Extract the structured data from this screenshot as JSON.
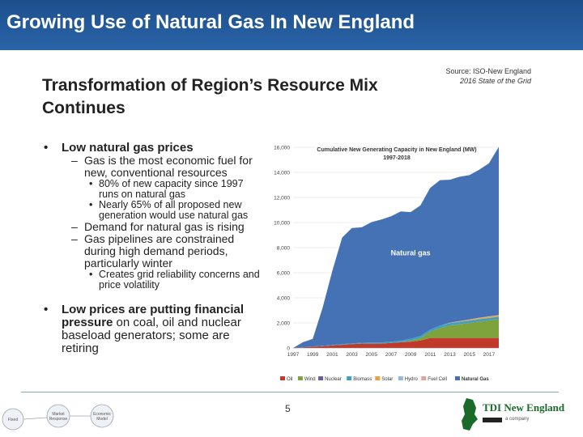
{
  "slide_title": "Growing Use of Natural Gas In New England",
  "source": {
    "line1": "Source: ISO-New England",
    "line2": "2016 State of the Grid"
  },
  "heading": {
    "line1": "Transformation of Region’s Resource Mix",
    "line2": "Continues"
  },
  "bullets": {
    "b1": {
      "label": "Low natural gas prices",
      "dashes": [
        {
          "text": "Gas is the most economic fuel for new, conventional resources"
        },
        {
          "text": "80% of new capacity since 1997 runs on natural gas"
        },
        {
          "text": "Nearly 65% of all proposed new generation would use natural gas"
        },
        {
          "text": "Demand for natural gas is rising"
        },
        {
          "text": "Gas pipelines are constrained during high demand periods, particularly winter"
        },
        {
          "text": "Creates grid reliability concerns and price volatility"
        }
      ]
    },
    "b2": {
      "bold": "Low prices are putting financial pressure",
      "rest": " on coal, oil and nuclear baseload generators; some are retiring"
    }
  },
  "page_number": "5",
  "flow_labels": {
    "n1": "Fixed",
    "n2a": "Market",
    "n2b": "Response",
    "n3a": "Economic",
    "n3b": "Model"
  },
  "logo": {
    "text": "TDI New England",
    "sub": "a company"
  },
  "colors": {
    "topbar": "#1d4f8c",
    "natural_gas": "#4472b4",
    "oil": "#c0392b",
    "wind": "#7fa33c",
    "nuclear": "#6b5b9e",
    "biomass": "#3e9fc4",
    "solar": "#e8a23a",
    "hydro": "#8db8df",
    "fuel_cell": "#d9a7a0"
  },
  "chart_data": {
    "type": "area",
    "title": "Cumulative New Generating Capacity in New England (MW)",
    "subtitle": "1997-2018",
    "x": [
      1997,
      1998,
      1999,
      2000,
      2001,
      2002,
      2003,
      2004,
      2005,
      2006,
      2007,
      2008,
      2009,
      2010,
      2011,
      2012,
      2013,
      2014,
      2015,
      2016,
      2017,
      2018
    ],
    "ylim": [
      0,
      16000
    ],
    "y_ticks": [
      "0",
      "2,000",
      "4,000",
      "6,000",
      "8,000",
      "10,000",
      "12,000",
      "14,000",
      "16,000"
    ],
    "x_ticks": [
      "1997",
      "1999",
      "2001",
      "2003",
      "2005",
      "2007",
      "2009",
      "2011",
      "2013",
      "2015",
      "2017"
    ],
    "series": [
      {
        "name": "Oil",
        "values": [
          0,
          50,
          100,
          150,
          200,
          250,
          300,
          350,
          350,
          350,
          400,
          450,
          500,
          600,
          800,
          800,
          800,
          800,
          800,
          800,
          800,
          800
        ]
      },
      {
        "name": "Wind",
        "values": [
          0,
          0,
          0,
          0,
          0,
          0,
          0,
          0,
          0,
          0,
          0,
          20,
          80,
          200,
          500,
          800,
          1000,
          1100,
          1200,
          1300,
          1400,
          1500
        ]
      },
      {
        "name": "Nuclear",
        "values": [
          0,
          0,
          0,
          0,
          0,
          0,
          0,
          0,
          0,
          0,
          0,
          0,
          0,
          0,
          0,
          0,
          0,
          0,
          0,
          0,
          0,
          0
        ]
      },
      {
        "name": "Biomass",
        "values": [
          0,
          10,
          20,
          30,
          40,
          50,
          60,
          70,
          80,
          90,
          100,
          120,
          150,
          160,
          170,
          180,
          180,
          190,
          190,
          190,
          190,
          190
        ]
      },
      {
        "name": "Solar",
        "values": [
          0,
          0,
          0,
          0,
          0,
          0,
          0,
          0,
          0,
          0,
          0,
          0,
          0,
          0,
          0,
          0,
          20,
          40,
          60,
          80,
          90,
          100
        ]
      },
      {
        "name": "Hydro",
        "values": [
          0,
          0,
          0,
          0,
          0,
          0,
          0,
          0,
          0,
          0,
          0,
          0,
          0,
          0,
          0,
          0,
          0,
          0,
          0,
          0,
          0,
          0
        ]
      },
      {
        "name": "Fuel Cell",
        "values": [
          0,
          0,
          0,
          0,
          0,
          0,
          0,
          0,
          0,
          0,
          0,
          0,
          0,
          0,
          0,
          0,
          10,
          20,
          30,
          40,
          40,
          40
        ]
      },
      {
        "name": "Natural Gas",
        "values": [
          0,
          400,
          600,
          3000,
          5900,
          8500,
          9200,
          9200,
          9600,
          9800,
          10000,
          10300,
          10100,
          10400,
          11300,
          11600,
          11400,
          11500,
          11500,
          11800,
          12200,
          13400
        ]
      }
    ],
    "annotation": "Natural gas"
  }
}
